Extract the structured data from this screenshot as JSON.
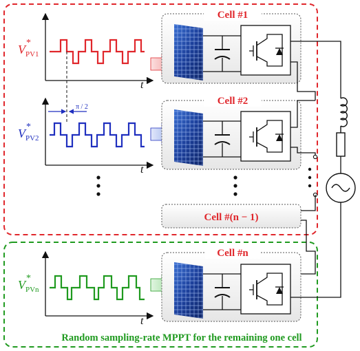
{
  "cells": {
    "cell1_title": "Cell #1",
    "cell2_title": "Cell #2",
    "celln_title": "Cell #n",
    "celln1_title": "Cell #(n − 1)"
  },
  "signals": {
    "v1_symbol": "V",
    "v1_sub": "PV1",
    "v2_symbol": "V",
    "v2_sub": "PV2",
    "vn_symbol": "V",
    "vn_sub": "PVn",
    "star": "*",
    "time_label": "t",
    "phase_label": "π / 2"
  },
  "caption": "Random sampling-rate MPPT for the remaining one cell",
  "colors": {
    "red": "#e0262b",
    "blue": "#1f2fbf",
    "green": "#1f9a1f"
  }
}
